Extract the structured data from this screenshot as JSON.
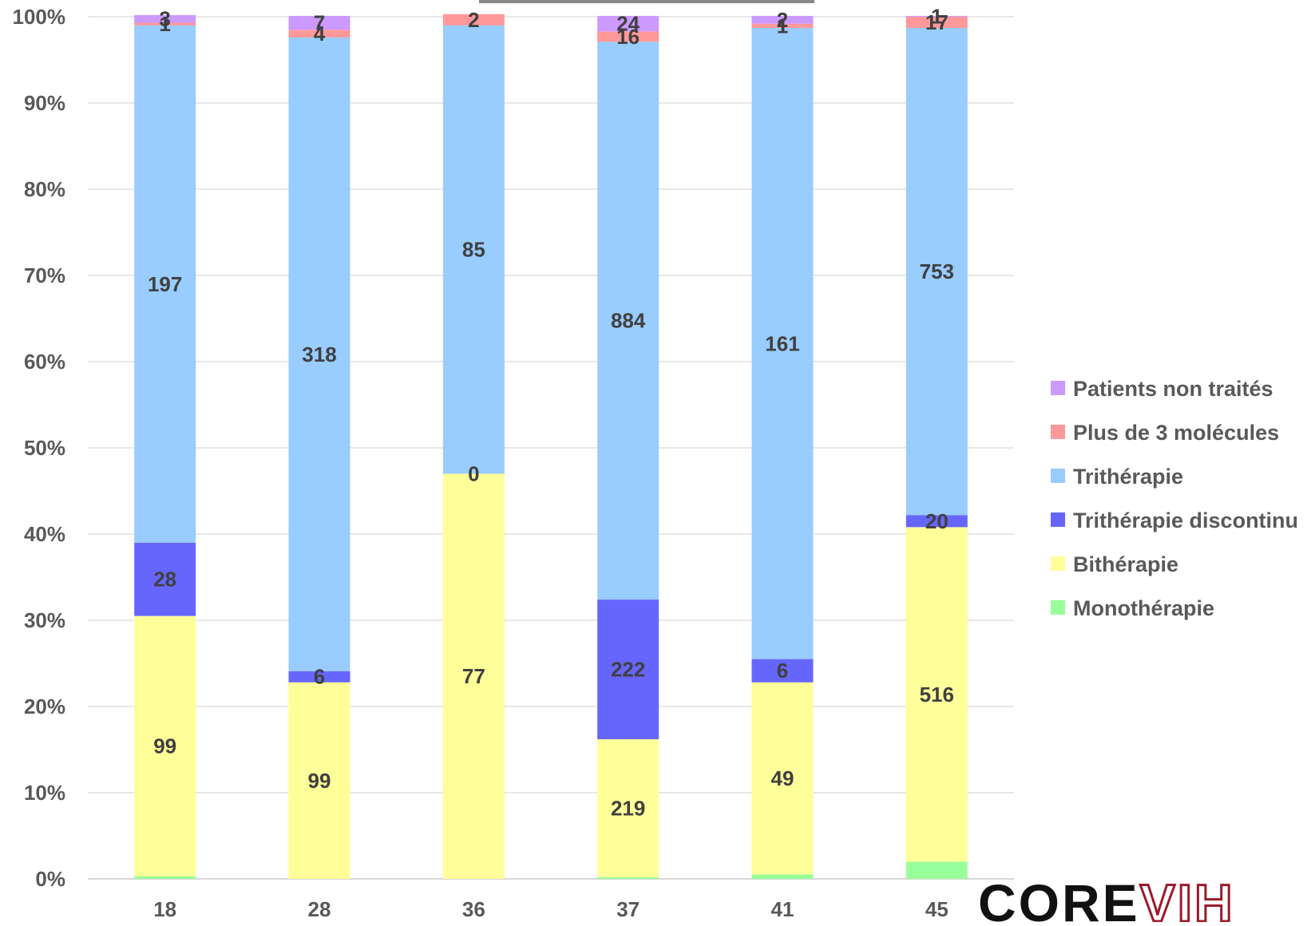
{
  "chart_data": {
    "type": "bar",
    "stacked": true,
    "normalized_percent": true,
    "title": "",
    "xlabel": "",
    "ylabel": "",
    "categories": [
      "18",
      "28",
      "36",
      "37",
      "41",
      "45"
    ],
    "ylim": [
      0,
      100
    ],
    "y_ticks": [
      "0%",
      "10%",
      "20%",
      "30%",
      "40%",
      "50%",
      "60%",
      "70%",
      "80%",
      "90%",
      "100%"
    ],
    "grid": true,
    "legend_position": "right",
    "series": [
      {
        "name": "Monothérapie",
        "color": "#99ff99",
        "percent": [
          0.3,
          0.0,
          0.0,
          0.2,
          0.5,
          2.0
        ],
        "labels": [
          null,
          null,
          null,
          null,
          null,
          null
        ]
      },
      {
        "name": "Bithérapie",
        "color": "#ffff99",
        "percent": [
          30.2,
          22.8,
          47.0,
          16.0,
          22.3,
          38.8
        ],
        "labels": [
          "99",
          "99",
          "77",
          "219",
          "49",
          "516"
        ]
      },
      {
        "name": "Trithérapie discontinu",
        "color": "#6666ff",
        "percent": [
          8.5,
          1.3,
          0.0,
          16.2,
          2.7,
          1.4
        ],
        "labels": [
          "28",
          "6",
          null,
          "222",
          "6",
          "20"
        ]
      },
      {
        "name": "Trithérapie",
        "color": "#99ccff",
        "percent": [
          60.0,
          73.5,
          52.0,
          64.7,
          73.2,
          56.5
        ],
        "labels": [
          "197",
          "318",
          "85",
          "884",
          "161",
          "753"
        ]
      },
      {
        "name": "Plus de 3 molécules",
        "color": "#ff9999",
        "percent": [
          0.3,
          0.9,
          1.3,
          1.2,
          0.5,
          1.3
        ],
        "labels": [
          "1",
          "4",
          "2",
          "16",
          "1",
          "17"
        ]
      },
      {
        "name": "Patients non traités",
        "color": "#cc99ff",
        "percent": [
          0.9,
          1.6,
          0.0,
          1.8,
          0.9,
          0.1
        ],
        "labels": [
          "3",
          "7",
          null,
          "24",
          "2",
          "1"
        ]
      }
    ],
    "extra_labels": [
      {
        "category_index": 2,
        "series_index": 2,
        "text": "0"
      }
    ]
  },
  "logo": {
    "part1": "CORE",
    "part2": "VIH"
  }
}
